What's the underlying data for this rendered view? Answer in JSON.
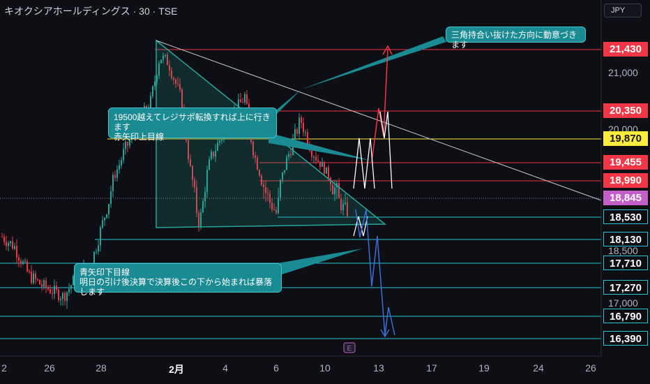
{
  "header": {
    "title": "キオクシアホールディングス · 30 · TSE",
    "currency": "JPY"
  },
  "event_marker": "E",
  "callouts": {
    "top": "三角持合い抜けた方向に動意づきます",
    "middle_line1": "19500越えてレジサポ転換すれば上に行きます",
    "middle_line2": "赤矢印上目線",
    "bottom_line1": "青矢印下目線",
    "bottom_line2": "明日の引け後決算で決算後この下から始まれば暴落します"
  },
  "colors": {
    "red": "#f23645",
    "yellow": "#ffeb3b",
    "cyan": "#26c6da",
    "purple": "#c45ec8",
    "teal": "#26a69a",
    "blue": "#2962ff",
    "background": "#0d0f14"
  },
  "chart_data": {
    "type": "candlestick",
    "y_axis": {
      "ticks": [
        "21,000",
        "20,000",
        "18,500",
        "17,000"
      ],
      "tick_values": [
        21000,
        20000,
        18500,
        17000
      ]
    },
    "x_axis": {
      "ticks": [
        "2",
        "26",
        "28",
        "2月",
        "4",
        "6",
        "10",
        "13",
        "17",
        "19",
        "24",
        "26"
      ]
    },
    "price_levels": [
      {
        "label": "21,430",
        "value": 21430,
        "color": "red"
      },
      {
        "label": "20,350",
        "value": 20350,
        "color": "red"
      },
      {
        "label": "19,870",
        "value": 19870,
        "color": "yellow"
      },
      {
        "label": "19,455",
        "value": 19455,
        "color": "red"
      },
      {
        "label": "18,990",
        "value": 18990,
        "color": "red"
      },
      {
        "label": "18,845",
        "value": 18845,
        "color": "purple",
        "note": "current price"
      },
      {
        "label": "18,530",
        "value": 18530,
        "color": "cyan"
      },
      {
        "label": "18,130",
        "value": 18130,
        "color": "cyan"
      },
      {
        "label": "17,710",
        "value": 17710,
        "color": "cyan"
      },
      {
        "label": "17,270",
        "value": 17270,
        "color": "cyan"
      },
      {
        "label": "16,790",
        "value": 16790,
        "color": "cyan"
      },
      {
        "label": "16,390",
        "value": 16390,
        "color": "cyan"
      }
    ]
  }
}
